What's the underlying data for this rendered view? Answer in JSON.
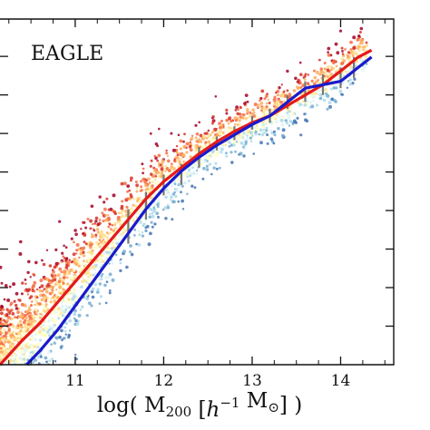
{
  "chart_data": {
    "type": "scatter",
    "panel_label": "EAGLE",
    "xlabel": "log( M₂₀₀ [h⁻¹ M⊙] )",
    "x_ticks": [
      "11",
      "12",
      "13",
      "14"
    ],
    "x_tick_values": [
      11,
      12,
      13,
      14
    ],
    "xlim": [
      10.15,
      14.6
    ],
    "ylim": [
      0,
      1
    ],
    "grid": false,
    "point_colors": [
      "#a50026",
      "#d73027",
      "#f46d43",
      "#fdae61",
      "#fee090",
      "#ffffbf",
      "#e0f3f8",
      "#abd9e9",
      "#74add1",
      "#4575b4"
    ],
    "series": [
      {
        "color": "#e41a1c",
        "x": [
          10.15,
          10.4,
          10.6,
          10.8,
          11.0,
          11.2,
          11.4,
          11.6,
          11.8,
          12.0,
          12.2,
          12.4,
          12.6,
          12.8,
          13.0,
          13.2,
          13.4,
          13.6,
          13.8,
          14.0,
          14.2,
          14.35
        ],
        "y": [
          0.0,
          0.07,
          0.12,
          0.18,
          0.24,
          0.3,
          0.36,
          0.42,
          0.48,
          0.53,
          0.57,
          0.61,
          0.645,
          0.675,
          0.7,
          0.72,
          0.75,
          0.78,
          0.81,
          0.85,
          0.89,
          0.91
        ]
      },
      {
        "color": "#1a1acc",
        "x": [
          10.45,
          10.6,
          10.8,
          11.0,
          11.2,
          11.4,
          11.6,
          11.8,
          12.0,
          12.2,
          12.4,
          12.6,
          12.8,
          13.0,
          13.2,
          13.4,
          13.6,
          13.8,
          14.0,
          14.2,
          14.35
        ],
        "y": [
          0.0,
          0.04,
          0.1,
          0.17,
          0.24,
          0.31,
          0.38,
          0.45,
          0.51,
          0.56,
          0.6,
          0.635,
          0.665,
          0.695,
          0.72,
          0.76,
          0.8,
          0.81,
          0.82,
          0.86,
          0.89
        ]
      }
    ],
    "error_bars": [
      {
        "x": 11.6,
        "y": 0.4,
        "ylo": 0.35,
        "yhi": 0.45
      },
      {
        "x": 11.8,
        "y": 0.46,
        "ylo": 0.42,
        "yhi": 0.5
      },
      {
        "x": 12.0,
        "y": 0.52,
        "ylo": 0.49,
        "yhi": 0.55
      },
      {
        "x": 12.2,
        "y": 0.55,
        "ylo": 0.52,
        "yhi": 0.58
      },
      {
        "x": 12.4,
        "y": 0.6,
        "ylo": 0.57,
        "yhi": 0.63
      },
      {
        "x": 12.6,
        "y": 0.64,
        "ylo": 0.62,
        "yhi": 0.66
      },
      {
        "x": 12.8,
        "y": 0.67,
        "ylo": 0.65,
        "yhi": 0.69
      },
      {
        "x": 13.0,
        "y": 0.7,
        "ylo": 0.68,
        "yhi": 0.72
      },
      {
        "x": 13.2,
        "y": 0.72,
        "ylo": 0.7,
        "yhi": 0.74
      },
      {
        "x": 13.4,
        "y": 0.76,
        "ylo": 0.74,
        "yhi": 0.78
      },
      {
        "x": 13.6,
        "y": 0.79,
        "ylo": 0.76,
        "yhi": 0.82
      },
      {
        "x": 13.8,
        "y": 0.81,
        "ylo": 0.78,
        "yhi": 0.84
      },
      {
        "x": 14.0,
        "y": 0.83,
        "ylo": 0.8,
        "yhi": 0.86
      },
      {
        "x": 14.15,
        "y": 0.86,
        "ylo": 0.83,
        "yhi": 0.89
      }
    ]
  }
}
